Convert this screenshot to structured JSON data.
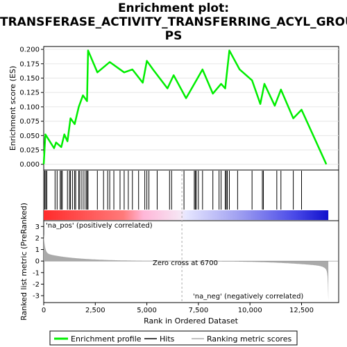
{
  "title_lines": [
    "Enrichment plot:",
    "TRANSFERASE_ACTIVITY_TRANSFERRING_ACYL_GROU",
    "PS"
  ],
  "colors": {
    "es_line": "#00ee00",
    "hits": "#000000",
    "metric_fill": "#aaaaaa",
    "pos_label": "#ff0000",
    "neg_label": "#0000cc",
    "zero_line": "#aaaaaa"
  },
  "chart_data": {
    "type": "line",
    "es": {
      "ylabel": "Enrichment score (ES)",
      "ylim": [
        -0.01,
        0.205
      ],
      "yticks": [
        0.0,
        0.025,
        0.05,
        0.075,
        0.1,
        0.125,
        0.15,
        0.175,
        0.2
      ],
      "ytick_labels": [
        "0.000",
        "0.025",
        "0.050",
        "0.075",
        "0.100",
        "0.125",
        "0.150",
        "0.175",
        "0.200"
      ],
      "x": [
        0,
        80,
        500,
        600,
        850,
        1000,
        1150,
        1300,
        1500,
        1700,
        1900,
        2100,
        2150,
        2600,
        3200,
        3900,
        4300,
        4800,
        5000,
        5300,
        6000,
        6300,
        6900,
        7400,
        7700,
        8200,
        8600,
        8800,
        9000,
        9500,
        10100,
        10500,
        10700,
        11200,
        11500,
        12100,
        12500,
        13700
      ],
      "y": [
        0.0,
        0.052,
        0.028,
        0.038,
        0.03,
        0.052,
        0.04,
        0.08,
        0.07,
        0.1,
        0.12,
        0.11,
        0.198,
        0.16,
        0.178,
        0.16,
        0.165,
        0.142,
        0.18,
        0.165,
        0.132,
        0.155,
        0.115,
        0.146,
        0.165,
        0.123,
        0.14,
        0.132,
        0.198,
        0.165,
        0.146,
        0.105,
        0.14,
        0.102,
        0.13,
        0.08,
        0.095,
        0.0
      ]
    },
    "hits": {
      "ranks": [
        50,
        100,
        150,
        550,
        650,
        800,
        850,
        900,
        1150,
        1250,
        1300,
        1400,
        1500,
        1550,
        1700,
        1750,
        1850,
        1950,
        2050,
        2100,
        2150,
        2600,
        2900,
        3100,
        3200,
        3400,
        3700,
        3900,
        4100,
        4300,
        4600,
        4900,
        5000,
        5100,
        5500,
        6100,
        6200,
        6800,
        7300,
        7350,
        7400,
        7500,
        7700,
        8200,
        8500,
        8600,
        8800,
        8850,
        8900,
        9000,
        9400,
        10100,
        10600,
        10650,
        11300,
        11500,
        12100,
        12500
      ]
    },
    "metric": {
      "ylabel": "Ranked list metric (PreRanked)",
      "ylim": [
        -3.6,
        3.5
      ],
      "yticks": [
        3,
        2,
        1,
        0,
        -1,
        -2,
        -3
      ],
      "zero_cross": 6700,
      "zero_cross_label": "Zero cross at 6700",
      "pos_label": "'na_pos' (positively correlated)",
      "neg_label": "'na_neg' (negatively correlated)",
      "n_genes": 13800
    },
    "xlabel": "Rank in Ordered Dataset",
    "xlim": [
      0,
      14300
    ],
    "xticks": [
      0,
      2500,
      5000,
      7500,
      10000,
      12500
    ],
    "xtick_labels": [
      "0",
      "2,500",
      "5,000",
      "7,500",
      "10,000",
      "12,500"
    ],
    "legend": [
      "Enrichment profile",
      "Hits",
      "Ranking metric scores"
    ],
    "legend_position": "bottom"
  }
}
